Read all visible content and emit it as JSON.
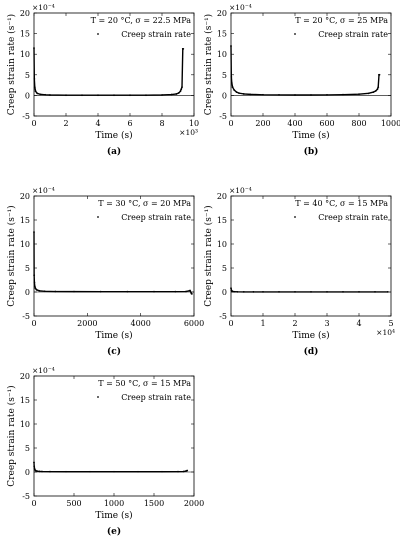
{
  "chart_data": [
    {
      "type": "scatter",
      "panel_label": "(a)",
      "legend_title_T": "T = 20 °C, σ = 22.5 MPa",
      "legend_entry": "Creep strain rate",
      "legend_position": "top-right",
      "xlabel": "Time (s)",
      "ylabel": "Creep strain rate (s⁻¹)",
      "x_multiplier": "×10³",
      "y_multiplier": "×10⁻⁴",
      "xlim": [
        0,
        10
      ],
      "ylim": [
        -5,
        20
      ],
      "xticks": [
        0,
        2,
        4,
        6,
        8,
        10
      ],
      "yticks": [
        -5,
        0,
        5,
        10,
        15,
        20
      ],
      "xtick_labels": [
        "0",
        "2",
        "4",
        "6",
        "8",
        "10"
      ],
      "ytick_labels": [
        "-5",
        "0",
        "5",
        "10",
        "15",
        "20"
      ],
      "grid": false,
      "series": [
        {
          "name": "Creep strain rate",
          "x": [
            0.0,
            0.02,
            0.05,
            0.1,
            0.2,
            0.4,
            0.7,
            1.0,
            2.0,
            3.0,
            4.0,
            5.0,
            6.0,
            7.0,
            8.0,
            8.6,
            8.9,
            9.05,
            9.15,
            9.2,
            9.25,
            9.3,
            9.33
          ],
          "y": [
            11.5,
            4.0,
            2.0,
            1.0,
            0.5,
            0.25,
            0.15,
            0.1,
            0.05,
            0.05,
            0.05,
            0.05,
            0.05,
            0.05,
            0.1,
            0.2,
            0.35,
            0.6,
            1.0,
            1.5,
            2.0,
            11.3,
            11.3
          ]
        }
      ]
    },
    {
      "type": "scatter",
      "panel_label": "(b)",
      "legend_title_T": "T = 20 °C, σ = 25 MPa",
      "legend_entry": "Creep strain rate",
      "legend_position": "top-right",
      "xlabel": "Time (s)",
      "ylabel": "Creep strain rate (s⁻¹)",
      "x_multiplier": "",
      "y_multiplier": "×10⁻⁴",
      "xlim": [
        0,
        1000
      ],
      "ylim": [
        -5,
        20
      ],
      "xticks": [
        0,
        200,
        400,
        600,
        800,
        1000
      ],
      "yticks": [
        -5,
        0,
        5,
        10,
        15,
        20
      ],
      "xtick_labels": [
        "0",
        "200",
        "400",
        "600",
        "800",
        "1000"
      ],
      "ytick_labels": [
        "-5",
        "0",
        "5",
        "10",
        "15",
        "20"
      ],
      "grid": false,
      "series": [
        {
          "name": "Creep strain rate",
          "x": [
            0,
            2,
            5,
            10,
            20,
            35,
            50,
            80,
            120,
            200,
            300,
            400,
            500,
            600,
            700,
            800,
            860,
            890,
            905,
            915,
            920,
            925,
            928
          ],
          "y": [
            12,
            4.5,
            3.0,
            2.0,
            1.3,
            0.8,
            0.55,
            0.35,
            0.25,
            0.15,
            0.12,
            0.1,
            0.1,
            0.12,
            0.18,
            0.3,
            0.5,
            0.8,
            1.1,
            1.5,
            2.0,
            5.0,
            5.0
          ]
        }
      ]
    },
    {
      "type": "scatter",
      "panel_label": "(c)",
      "legend_title_T": "T = 30 °C, σ = 20 MPa",
      "legend_entry": "Creep strain rate",
      "legend_position": "top-right",
      "xlabel": "Time (s)",
      "ylabel": "Creep strain rate (s⁻¹)",
      "x_multiplier": "",
      "y_multiplier": "×10⁻⁴",
      "xlim": [
        0,
        6000
      ],
      "ylim": [
        -5,
        20
      ],
      "xticks": [
        0,
        2000,
        4000,
        6000
      ],
      "yticks": [
        -5,
        0,
        5,
        10,
        15,
        20
      ],
      "xtick_labels": [
        "0",
        "2000",
        "4000",
        "6000"
      ],
      "ytick_labels": [
        "-5",
        "0",
        "5",
        "10",
        "15",
        "20"
      ],
      "grid": false,
      "series": [
        {
          "name": "Creep strain rate",
          "x": [
            0,
            5,
            15,
            30,
            60,
            100,
            200,
            400,
            800,
            1500,
            2500,
            3500,
            4500,
            5300,
            5700,
            5850,
            5900,
            5920
          ],
          "y": [
            12.5,
            3.5,
            2.0,
            1.2,
            0.7,
            0.45,
            0.25,
            0.15,
            0.1,
            0.08,
            0.06,
            0.06,
            0.06,
            0.06,
            0.1,
            0.3,
            -0.3,
            -0.4
          ]
        }
      ]
    },
    {
      "type": "scatter",
      "panel_label": "(d)",
      "legend_title_T": "T = 40 °C, σ = 15 MPa",
      "legend_entry": "Creep strain rate",
      "legend_position": "top-right",
      "xlabel": "Time (s)",
      "ylabel": "Creep strain rate (s⁻¹)",
      "x_multiplier": "×10⁴",
      "y_multiplier": "×10⁻⁴",
      "xlim": [
        0,
        5
      ],
      "ylim": [
        -5,
        20
      ],
      "xticks": [
        0,
        1,
        2,
        3,
        4,
        5
      ],
      "yticks": [
        -5,
        0,
        5,
        10,
        15,
        20
      ],
      "xtick_labels": [
        "0",
        "1",
        "2",
        "3",
        "4",
        "5"
      ],
      "ytick_labels": [
        "-5",
        "0",
        "5",
        "10",
        "15",
        "20"
      ],
      "grid": false,
      "series": [
        {
          "name": "Creep strain rate",
          "x": [
            0,
            0.01,
            0.03,
            0.06,
            0.1,
            0.2,
            0.4,
            0.7,
            1.0,
            1.5,
            2.0,
            2.5,
            3.0,
            3.5,
            4.0,
            4.5,
            4.9
          ],
          "y": [
            0.8,
            0.4,
            0.2,
            0.1,
            0.05,
            0.03,
            0.02,
            0.02,
            0.02,
            0.02,
            0.02,
            0.02,
            0.02,
            0.02,
            0.02,
            0.02,
            0.02
          ]
        }
      ]
    },
    {
      "type": "scatter",
      "panel_label": "(e)",
      "legend_title_T": "T = 50 °C, σ = 15 MPa",
      "legend_entry": "Creep strain rate",
      "legend_position": "top-right",
      "xlabel": "Time (s)",
      "ylabel": "Creep strain rate (s⁻¹)",
      "x_multiplier": "",
      "y_multiplier": "×10⁻⁴",
      "xlim": [
        0,
        2000
      ],
      "ylim": [
        -5,
        20
      ],
      "xticks": [
        0,
        500,
        1000,
        1500,
        2000
      ],
      "yticks": [
        -5,
        0,
        5,
        10,
        15,
        20
      ],
      "xtick_labels": [
        "0",
        "500",
        "1000",
        "1500",
        "2000"
      ],
      "ytick_labels": [
        "-5",
        "0",
        "5",
        "10",
        "15",
        "20"
      ],
      "grid": false,
      "series": [
        {
          "name": "Creep strain rate",
          "x": [
            0,
            2,
            5,
            10,
            20,
            40,
            70,
            100,
            200,
            400,
            700,
            1000,
            1300,
            1600,
            1800,
            1870,
            1900,
            1915
          ],
          "y": [
            2.0,
            1.2,
            0.8,
            0.5,
            0.3,
            0.18,
            0.12,
            0.1,
            0.07,
            0.05,
            0.05,
            0.05,
            0.05,
            0.05,
            0.07,
            0.1,
            0.2,
            0.3
          ]
        }
      ]
    }
  ]
}
